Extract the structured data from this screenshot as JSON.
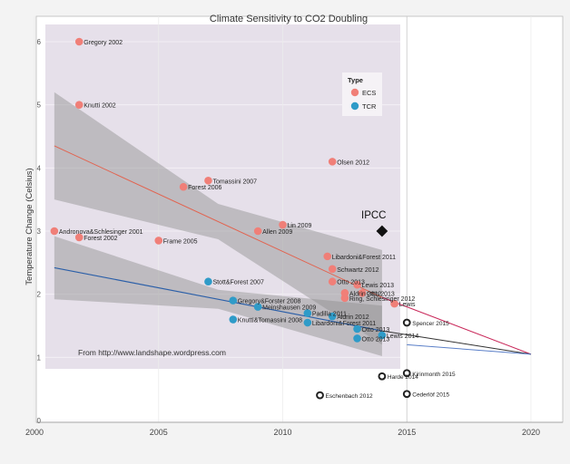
{
  "chart_data": {
    "type": "scatter",
    "title": "Climate Sensitivity to CO2 Doubling",
    "ylabel": "Temperature Change (Celsius)",
    "xlabel": "",
    "x_ticks": [
      2000,
      2005,
      2010,
      2015,
      2020
    ],
    "y_ticks": [
      0,
      1,
      2,
      3,
      4,
      5,
      6
    ],
    "xlim": [
      2000,
      2020
    ],
    "ylim": [
      -0.05,
      6.3
    ],
    "grid": true,
    "legend": {
      "title": "Type",
      "position": "top-right",
      "entries": [
        {
          "label": "ECS",
          "color": "#f07f78"
        },
        {
          "label": "TCR",
          "color": "#2f9bc8"
        }
      ]
    },
    "credit": "From http://www.landshape.wordpress.com",
    "ecs": [
      {
        "label": "Gregory 2002",
        "x": 2001.8,
        "y": 6.0
      },
      {
        "label": "Knutti 2002",
        "x": 2001.8,
        "y": 5.0
      },
      {
        "label": "Andronova&Schlesinger 2001",
        "x": 2000.8,
        "y": 3.0
      },
      {
        "label": "Forest 2002",
        "x": 2001.8,
        "y": 2.9
      },
      {
        "label": "Frame 2005",
        "x": 2005.0,
        "y": 2.85
      },
      {
        "label": "Forest 2006",
        "x": 2006.0,
        "y": 3.7
      },
      {
        "label": "Tomassini 2007",
        "x": 2007.0,
        "y": 3.8
      },
      {
        "label": "Allen 2009",
        "x": 2009.0,
        "y": 3.0
      },
      {
        "label": "Lin 2009",
        "x": 2010.0,
        "y": 3.1
      },
      {
        "label": "Olsen 2012",
        "x": 2012.0,
        "y": 4.1
      },
      {
        "label": "Libardoni&Forest 2011",
        "x": 2011.8,
        "y": 2.6
      },
      {
        "label": "Schwartz 2012",
        "x": 2012.0,
        "y": 2.4
      },
      {
        "label": "Otto 2013",
        "x": 2012.0,
        "y": 2.2
      },
      {
        "label": "Lewis 2013",
        "x": 2013.0,
        "y": 2.15
      },
      {
        "label": "Aldrin 2012",
        "x": 2012.5,
        "y": 2.02
      },
      {
        "label": "Otto 2013",
        "x": 2013.2,
        "y": 2.02
      },
      {
        "label": "Ring, Schlesinger 2012",
        "x": 2012.5,
        "y": 1.94
      },
      {
        "label": "Lewis",
        "x": 2014.5,
        "y": 1.85
      }
    ],
    "tcr": [
      {
        "label": "Stott&Forest 2007",
        "x": 2007.0,
        "y": 2.2
      },
      {
        "label": "Gregory&Forster 2008",
        "x": 2008.0,
        "y": 1.9
      },
      {
        "label": "Meinshausen 2009",
        "x": 2009.0,
        "y": 1.8
      },
      {
        "label": "Knutti&Tomassini 2008",
        "x": 2008.0,
        "y": 1.6
      },
      {
        "label": "Padilla 2011",
        "x": 2011.0,
        "y": 1.7
      },
      {
        "label": "Aldrin 2012",
        "x": 2012.0,
        "y": 1.65
      },
      {
        "label": "Libardoni&Forest 2011",
        "x": 2011.0,
        "y": 1.55
      },
      {
        "label": "Otto 2013",
        "x": 2013.0,
        "y": 1.45
      },
      {
        "label": "Lewis 2014",
        "x": 2014.0,
        "y": 1.35
      },
      {
        "label": "Otto 2013",
        "x": 2013.0,
        "y": 1.3
      }
    ],
    "extra": [
      {
        "label": "Eschenbach 2012",
        "x": 2011.5,
        "y": 0.4
      },
      {
        "label": "Harde 2014",
        "x": 2014.0,
        "y": 0.7
      },
      {
        "label": "Kirinmonth 2015",
        "x": 2015.0,
        "y": 0.75
      },
      {
        "label": "Cederlöf 2015",
        "x": 2015.0,
        "y": 0.42
      },
      {
        "label": "Spencer 2015",
        "x": 2015.0,
        "y": 1.55
      }
    ],
    "ipcc": {
      "label": "IPCC",
      "x": 2014.0,
      "y": 3.0
    },
    "fits": {
      "ecs": {
        "x": [
          2000.8,
          2014.0
        ],
        "y": [
          4.35,
          1.95
        ]
      },
      "tcr": {
        "x": [
          2000.8,
          2014.0
        ],
        "y": [
          2.42,
          1.42
        ]
      },
      "extension_red": {
        "x": [
          2014.0,
          2020.0
        ],
        "y": [
          1.95,
          1.05
        ]
      },
      "extension_dark": {
        "x": [
          2014.0,
          2020.0
        ],
        "y": [
          1.42,
          1.05
        ]
      },
      "extension_blue": {
        "x": [
          2015.0,
          2020.0
        ],
        "y": [
          1.2,
          1.05
        ]
      }
    }
  }
}
